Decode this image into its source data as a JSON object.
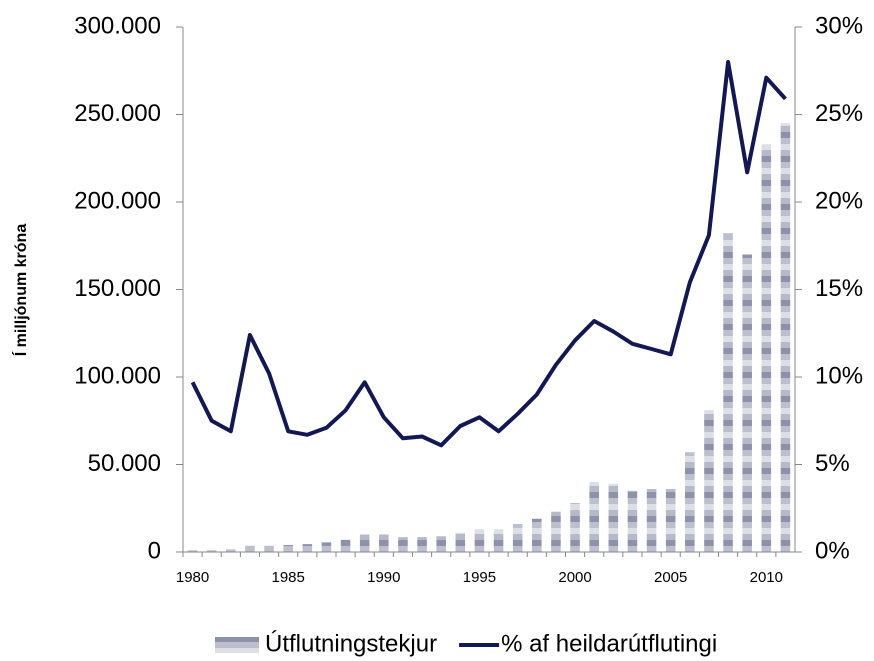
{
  "chart_data": {
    "type": "bar_line",
    "y_label": "Í milljónum króna",
    "categories": [
      "1980",
      null,
      null,
      null,
      null,
      "1985",
      null,
      null,
      null,
      null,
      "1990",
      null,
      null,
      null,
      null,
      "1995",
      null,
      null,
      null,
      null,
      "2000",
      null,
      null,
      null,
      null,
      "2005",
      null,
      null,
      null,
      null,
      "2010",
      null
    ],
    "series": [
      {
        "name": "Útflutningstekjur",
        "type": "bar",
        "color": "#7a7f9a",
        "values": [
          1000,
          1000,
          1500,
          3500,
          3500,
          4000,
          4500,
          5500,
          7000,
          10000,
          10000,
          8500,
          8500,
          9000,
          11000,
          13000,
          13000,
          16000,
          19000,
          23000,
          28000,
          40000,
          39000,
          35000,
          36000,
          36000,
          57000,
          81000,
          182000,
          170000,
          233000,
          245000
        ]
      },
      {
        "name": "% af heildarútflutingi",
        "type": "line",
        "axis": "y2",
        "color": "#141852",
        "values": [
          9.7,
          7.5,
          6.9,
          12.4,
          10.2,
          6.9,
          6.7,
          7.1,
          8.1,
          9.7,
          7.7,
          6.5,
          6.6,
          6.1,
          7.2,
          7.7,
          6.9,
          7.9,
          9.0,
          10.7,
          12.1,
          13.2,
          12.6,
          11.9,
          11.6,
          11.3,
          15.4,
          18.1,
          28.0,
          21.7,
          27.1,
          25.9
        ]
      }
    ],
    "ylim": [
      0,
      300000
    ],
    "yticks": [
      0,
      {
        "value": 50000,
        "label": "50.000"
      },
      {
        "value": 100000,
        "label": "100.000"
      },
      {
        "value": 150000,
        "label": "150.000"
      },
      {
        "value": 200000,
        "label": "200.000"
      },
      {
        "value": 250000,
        "label": "250.000"
      },
      {
        "value": 300000,
        "label": "300.000"
      }
    ],
    "y2lim": [
      0,
      30
    ],
    "y2ticks": [
      {
        "value": 0,
        "label": "0%"
      },
      {
        "value": 5,
        "label": "5%"
      },
      {
        "value": 10,
        "label": "10%"
      },
      {
        "value": 15,
        "label": "15%"
      },
      {
        "value": 20,
        "label": "20%"
      },
      {
        "value": 25,
        "label": "25%"
      },
      {
        "value": 30,
        "label": "30%"
      }
    ],
    "grid": false,
    "legend": "bottom"
  }
}
